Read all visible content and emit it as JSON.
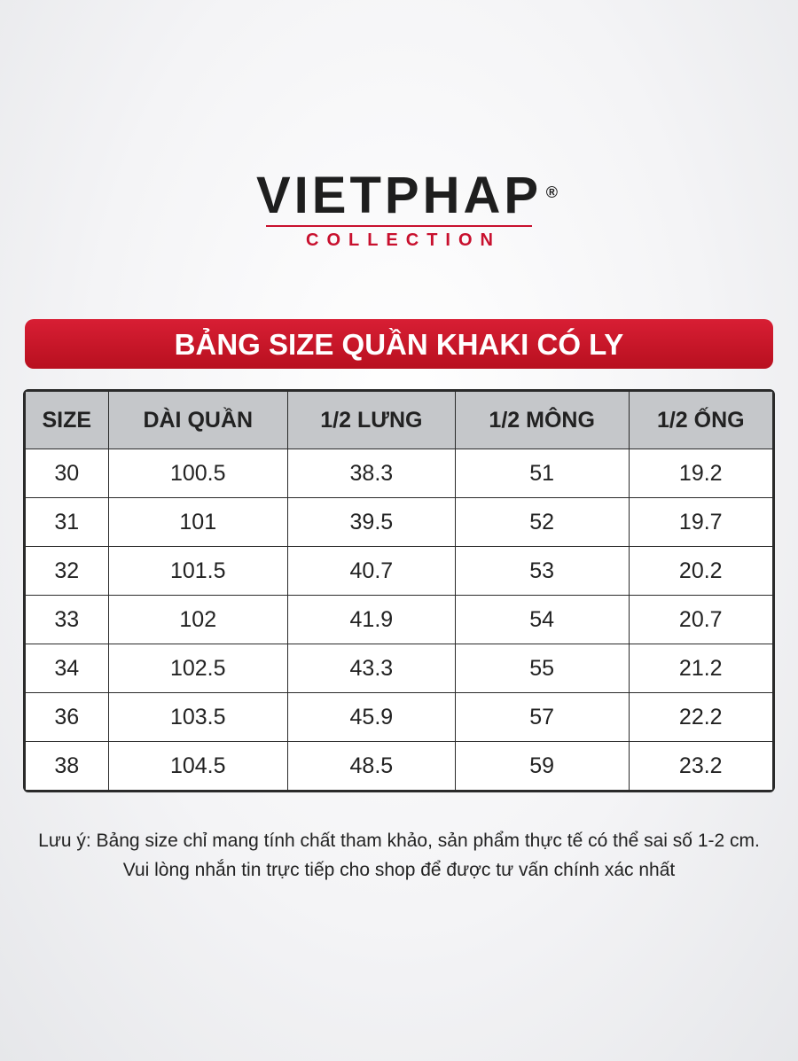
{
  "logo": {
    "brand": "VIETPHAP",
    "mark": "®",
    "sub": "COLLECTION"
  },
  "title": "BẢNG SIZE QUẦN KHAKI CÓ LY",
  "table": {
    "headers": [
      "SIZE",
      "DÀI QUẦN",
      "1/2 LƯNG",
      "1/2 MÔNG",
      "1/2 ỐNG"
    ],
    "rows": [
      [
        "30",
        "100.5",
        "38.3",
        "51",
        "19.2"
      ],
      [
        "31",
        "101",
        "39.5",
        "52",
        "19.7"
      ],
      [
        "32",
        "101.5",
        "40.7",
        "53",
        "20.2"
      ],
      [
        "33",
        "102",
        "41.9",
        "54",
        "20.7"
      ],
      [
        "34",
        "102.5",
        "43.3",
        "55",
        "21.2"
      ],
      [
        "36",
        "103.5",
        "45.9",
        "57",
        "22.2"
      ],
      [
        "38",
        "104.5",
        "48.5",
        "59",
        "23.2"
      ]
    ]
  },
  "note": [
    "Lưu ý: Bảng size chỉ mang tính chất tham khảo, sản phẩm thực tế có thể sai số 1-2 cm.",
    "Vui lòng nhắn tin trực tiếp cho shop để được tư vấn chính xác nhất"
  ]
}
